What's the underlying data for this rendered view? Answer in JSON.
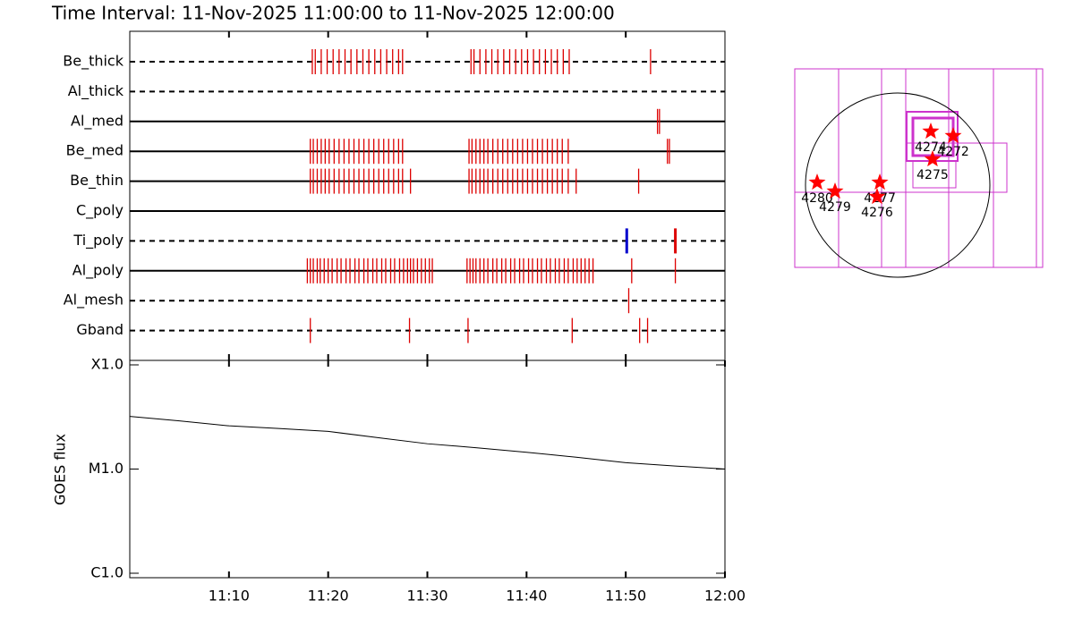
{
  "chart_data": [
    {
      "type": "timeline",
      "title": "Time Interval: 11-Nov-2025 11:00:00 to 11-Nov-2025 12:00:00",
      "color": "#dd0000",
      "xlim": [
        0,
        60
      ],
      "xticks": [
        10,
        20,
        30,
        40,
        50
      ],
      "rows": [
        {
          "name": "Be_thick",
          "line": "dashed",
          "times": [
            18.4,
            18.7,
            19.3,
            19.9,
            20.5,
            21.1,
            21.7,
            22.3,
            22.9,
            23.5,
            24.1,
            24.7,
            25.3,
            25.9,
            26.5,
            27.1,
            27.5,
            34.4,
            34.7,
            35.3,
            35.9,
            36.5,
            37.1,
            37.7,
            38.3,
            38.9,
            39.5,
            40.1,
            40.7,
            41.3,
            41.9,
            42.5,
            43.1,
            43.7,
            44.3,
            52.5
          ]
        },
        {
          "name": "Al_thick",
          "line": "dashed",
          "times": []
        },
        {
          "name": "Al_med",
          "line": "solid",
          "times": [
            53.2,
            53.4
          ]
        },
        {
          "name": "Be_med",
          "line": "solid",
          "times": [
            18.2,
            18.5,
            18.9,
            19.3,
            19.7,
            20.1,
            20.6,
            21.1,
            21.6,
            22.1,
            22.6,
            23.1,
            23.6,
            24.1,
            24.6,
            25.1,
            25.6,
            26.1,
            26.6,
            27.1,
            27.5,
            34.2,
            34.5,
            34.9,
            35.3,
            35.7,
            36.1,
            36.6,
            37.1,
            37.6,
            38.1,
            38.6,
            39.1,
            39.6,
            40.1,
            40.6,
            41.1,
            41.6,
            42.1,
            42.6,
            43.1,
            43.6,
            44.2,
            54.2,
            54.4
          ]
        },
        {
          "name": "Be_thin",
          "line": "solid",
          "times": [
            18.2,
            18.5,
            18.9,
            19.3,
            19.7,
            20.1,
            20.6,
            21.1,
            21.6,
            22.1,
            22.6,
            23.1,
            23.6,
            24.1,
            24.6,
            25.1,
            25.6,
            26.1,
            26.6,
            27.1,
            27.5,
            28.3,
            34.2,
            34.5,
            34.9,
            35.3,
            35.7,
            36.1,
            36.6,
            37.1,
            37.6,
            38.1,
            38.6,
            39.1,
            39.6,
            40.1,
            40.6,
            41.1,
            41.6,
            42.1,
            42.6,
            43.1,
            43.6,
            44.2,
            45.0,
            51.3
          ]
        },
        {
          "name": "C_poly",
          "line": "solid",
          "times": []
        },
        {
          "name": "Ti_poly",
          "line": "dashed",
          "times": [
            50.1,
            55.0
          ],
          "colors": [
            "#0000cc",
            "#dd0000"
          ]
        },
        {
          "name": "Al_poly",
          "line": "solid",
          "times": [
            17.9,
            18.2,
            18.5,
            18.9,
            19.2,
            19.6,
            20.0,
            20.4,
            20.9,
            21.3,
            21.8,
            22.2,
            22.7,
            23.1,
            23.6,
            24.0,
            24.5,
            24.9,
            25.4,
            25.8,
            26.3,
            26.7,
            27.2,
            27.6,
            28.0,
            28.3,
            28.6,
            29.0,
            29.4,
            29.8,
            30.2,
            30.5,
            34.0,
            34.3,
            34.6,
            34.9,
            35.3,
            35.7,
            36.1,
            36.6,
            37.0,
            37.5,
            37.9,
            38.4,
            38.8,
            39.3,
            39.7,
            40.2,
            40.6,
            41.1,
            41.5,
            42.0,
            42.4,
            42.9,
            43.3,
            43.8,
            44.2,
            44.7,
            45.1,
            45.5,
            45.9,
            46.3,
            46.7,
            50.6,
            55.0
          ]
        },
        {
          "name": "Al_mesh",
          "line": "dashed",
          "times": [
            50.3
          ]
        },
        {
          "name": "Gband",
          "line": "dashed",
          "times": [
            18.2,
            28.2,
            34.1,
            44.6,
            51.4,
            52.2
          ]
        }
      ]
    },
    {
      "type": "line",
      "ylabel": "GOES flux",
      "color": "#000000",
      "ylog": true,
      "xlim": [
        0,
        60
      ],
      "xticks": [
        {
          "value": 10,
          "label": "11:10"
        },
        {
          "value": 20,
          "label": "11:20"
        },
        {
          "value": 30,
          "label": "11:30"
        },
        {
          "value": 40,
          "label": "11:40"
        },
        {
          "value": 50,
          "label": "11:50"
        },
        {
          "value": 60,
          "label": "12:00"
        }
      ],
      "ylim": [
        1e-06,
        0.0001
      ],
      "yticks": [
        {
          "value": 1e-06,
          "label": "C1.0"
        },
        {
          "value": 1e-05,
          "label": "M1.0"
        },
        {
          "value": 0.0001,
          "label": "X1.0"
        }
      ],
      "x": [
        0,
        5,
        10,
        15,
        20,
        25,
        30,
        35,
        40,
        45,
        50,
        55,
        60
      ],
      "values": [
        3.2e-05,
        2.9e-05,
        2.6e-05,
        2.45e-05,
        2.3e-05,
        2e-05,
        1.75e-05,
        1.6e-05,
        1.45e-05,
        1.3e-05,
        1.15e-05,
        1.07e-05,
        1e-05
      ]
    },
    {
      "type": "scatter",
      "color": "#ff0000",
      "labels": [
        "4280",
        "4279",
        "4277",
        "4276",
        "4274",
        "4272",
        "4275"
      ],
      "x": [
        -852,
        -663,
        -189,
        -218,
        350,
        587,
        369
      ],
      "y": [
        28,
        -66,
        28,
        -123,
        568,
        521,
        275
      ]
    }
  ]
}
